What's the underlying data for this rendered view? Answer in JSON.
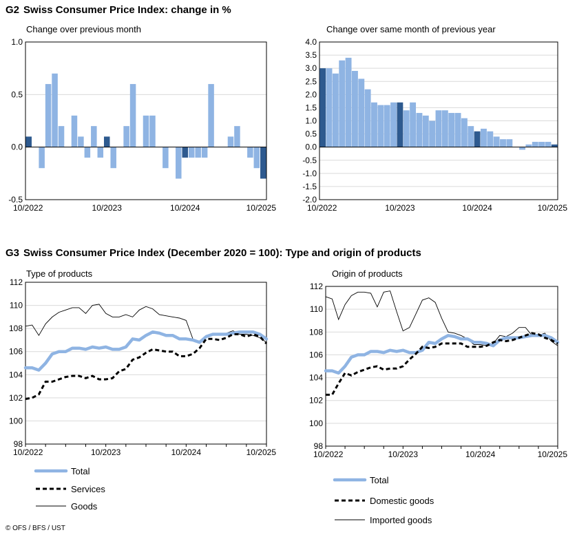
{
  "g2": {
    "code": "G2",
    "title": "Swiss Consumer Price Index: change in %"
  },
  "g3": {
    "code": "G3",
    "title": "Swiss Consumer Price Index (December 2020 = 100): Type and origin of products"
  },
  "copyright": "© OFS / BFS / UST",
  "colors": {
    "light_bar": "#8fb4e3",
    "dark_bar": "#2e5a8f",
    "total_line": "#8fb4e3",
    "dashed_line": "#000000",
    "thin_line": "#000000",
    "grid": "#d9d9d9"
  },
  "chart_data": [
    {
      "id": "mom",
      "type": "bar",
      "subtitle": "Change over previous month",
      "x_labels": [
        "10/2022",
        "10/2023",
        "10/2024",
        "10/2025"
      ],
      "ylim": [
        -0.5,
        1.0
      ],
      "y_ticks": [
        "1.0",
        "0.5",
        "0.0",
        "-0.5"
      ],
      "grid": true,
      "months": [
        "10/2022",
        "11/2022",
        "12/2022",
        "01/2023",
        "02/2023",
        "03/2023",
        "04/2023",
        "05/2023",
        "06/2023",
        "07/2023",
        "08/2023",
        "09/2023",
        "10/2023",
        "11/2023",
        "12/2023",
        "01/2024",
        "02/2024",
        "03/2024",
        "04/2024",
        "05/2024",
        "06/2024",
        "07/2024",
        "08/2024",
        "09/2024",
        "10/2024",
        "11/2024",
        "12/2024",
        "01/2025",
        "02/2025",
        "03/2025",
        "04/2025",
        "05/2025",
        "06/2025",
        "07/2025",
        "08/2025",
        "09/2025",
        "10/2025"
      ],
      "values": [
        0.1,
        0.0,
        -0.2,
        0.6,
        0.7,
        0.2,
        0.0,
        0.3,
        0.1,
        -0.1,
        0.2,
        -0.1,
        0.1,
        -0.2,
        0.0,
        0.2,
        0.6,
        0.0,
        0.3,
        0.3,
        0.0,
        -0.2,
        0.0,
        -0.3,
        -0.1,
        -0.1,
        -0.1,
        -0.1,
        0.6,
        0.0,
        0.0,
        0.1,
        0.2,
        0.0,
        -0.1,
        -0.2,
        -0.3
      ],
      "highlight_month": "10"
    },
    {
      "id": "yoy",
      "type": "bar",
      "subtitle": "Change over same month of previous year",
      "x_labels": [
        "10/2022",
        "10/2023",
        "10/2024",
        "10/2025"
      ],
      "ylim": [
        -2.0,
        4.0
      ],
      "y_ticks": [
        "4.0",
        "3.5",
        "3.0",
        "2.5",
        "2.0",
        "1.5",
        "1.0",
        "0.5",
        "0.0",
        "-0.5",
        "-1.0",
        "-1.5",
        "-2.0"
      ],
      "grid": true,
      "months": [
        "10/2022",
        "11/2022",
        "12/2022",
        "01/2023",
        "02/2023",
        "03/2023",
        "04/2023",
        "05/2023",
        "06/2023",
        "07/2023",
        "08/2023",
        "09/2023",
        "10/2023",
        "11/2023",
        "12/2023",
        "01/2024",
        "02/2024",
        "03/2024",
        "04/2024",
        "05/2024",
        "06/2024",
        "07/2024",
        "08/2024",
        "09/2024",
        "10/2024",
        "11/2024",
        "12/2024",
        "01/2025",
        "02/2025",
        "03/2025",
        "04/2025",
        "05/2025",
        "06/2025",
        "07/2025",
        "08/2025",
        "09/2025",
        "10/2025"
      ],
      "values": [
        3.0,
        3.0,
        2.8,
        3.3,
        3.4,
        2.9,
        2.6,
        2.2,
        1.7,
        1.6,
        1.6,
        1.7,
        1.7,
        1.4,
        1.7,
        1.3,
        1.2,
        1.0,
        1.4,
        1.4,
        1.3,
        1.3,
        1.1,
        0.8,
        0.6,
        0.7,
        0.6,
        0.4,
        0.3,
        0.3,
        0.0,
        -0.1,
        0.1,
        0.2,
        0.2,
        0.2,
        0.1
      ],
      "highlight_month": "10"
    },
    {
      "id": "type",
      "type": "line",
      "subtitle": "Type of products",
      "x_labels": [
        "10/2022",
        "10/2023",
        "10/2024",
        "10/2025"
      ],
      "ylim": [
        98,
        112
      ],
      "y_ticks": [
        "112",
        "110",
        "108",
        "106",
        "104",
        "102",
        "100",
        "98"
      ],
      "grid": true,
      "series": [
        {
          "name": "Total",
          "style": "thick",
          "values": [
            104.6,
            104.6,
            104.4,
            105.0,
            105.8,
            106.0,
            106.0,
            106.3,
            106.3,
            106.2,
            106.4,
            106.3,
            106.4,
            106.2,
            106.2,
            106.4,
            107.1,
            107.0,
            107.4,
            107.7,
            107.6,
            107.4,
            107.4,
            107.1,
            107.1,
            107.0,
            106.8,
            107.3,
            107.5,
            107.5,
            107.5,
            107.6,
            107.7,
            107.7,
            107.7,
            107.5,
            107.1
          ]
        },
        {
          "name": "Services",
          "style": "dashed",
          "values": [
            101.9,
            102.0,
            102.3,
            103.4,
            103.4,
            103.6,
            103.8,
            103.9,
            103.9,
            103.7,
            103.9,
            103.6,
            103.6,
            103.7,
            104.3,
            104.5,
            105.3,
            105.5,
            105.9,
            106.2,
            106.1,
            106.0,
            106.0,
            105.6,
            105.6,
            105.8,
            106.3,
            107.1,
            107.1,
            107.0,
            107.2,
            107.5,
            107.5,
            107.3,
            107.5,
            107.3,
            106.7
          ]
        },
        {
          "name": "Goods",
          "style": "thin",
          "values": [
            108.2,
            108.3,
            107.4,
            108.4,
            109.0,
            109.4,
            109.6,
            109.8,
            109.8,
            109.3,
            110.0,
            110.1,
            109.3,
            109.0,
            109.0,
            109.2,
            109.0,
            109.6,
            109.9,
            109.7,
            109.2,
            109.1,
            109.0,
            108.9,
            108.7,
            107.1,
            106.9,
            107.4,
            107.5,
            107.5,
            107.6,
            107.8,
            107.5,
            107.5,
            107.4,
            107.2,
            106.8
          ]
        }
      ]
    },
    {
      "id": "origin",
      "type": "line",
      "subtitle": "Origin of products",
      "x_labels": [
        "10/2022",
        "10/2023",
        "10/2024",
        "10/2025"
      ],
      "ylim": [
        98,
        112
      ],
      "y_ticks": [
        "112",
        "110",
        "108",
        "106",
        "104",
        "102",
        "100",
        "98"
      ],
      "grid": true,
      "series": [
        {
          "name": "Total",
          "style": "thick",
          "values": [
            104.6,
            104.6,
            104.4,
            105.0,
            105.8,
            106.0,
            106.0,
            106.3,
            106.3,
            106.2,
            106.4,
            106.3,
            106.4,
            106.2,
            106.2,
            106.4,
            107.1,
            107.0,
            107.4,
            107.7,
            107.6,
            107.4,
            107.4,
            107.1,
            107.1,
            107.0,
            106.8,
            107.3,
            107.5,
            107.5,
            107.5,
            107.6,
            107.7,
            107.7,
            107.7,
            107.5,
            107.1
          ]
        },
        {
          "name": "Domestic goods",
          "style": "dashed",
          "values": [
            102.5,
            102.5,
            103.5,
            104.4,
            104.2,
            104.5,
            104.7,
            104.9,
            105.0,
            104.7,
            104.8,
            104.8,
            105.0,
            105.6,
            106.1,
            106.7,
            106.6,
            106.7,
            107.0,
            107.0,
            107.0,
            107.0,
            106.7,
            106.7,
            106.7,
            106.8,
            107.1,
            107.3,
            107.2,
            107.3,
            107.5,
            107.7,
            107.9,
            107.8,
            107.5,
            107.3,
            107.0
          ]
        },
        {
          "name": "Imported goods",
          "style": "thin",
          "values": [
            111.1,
            110.9,
            109.1,
            110.4,
            111.2,
            111.5,
            111.5,
            111.4,
            110.2,
            111.5,
            111.6,
            109.8,
            108.1,
            108.4,
            109.6,
            110.8,
            111.0,
            110.6,
            109.2,
            108.0,
            107.9,
            107.7,
            107.4,
            106.9,
            106.9,
            106.8,
            107.0,
            107.7,
            107.6,
            107.9,
            108.4,
            108.4,
            107.7,
            107.7,
            107.9,
            107.2,
            106.8
          ]
        }
      ]
    }
  ]
}
